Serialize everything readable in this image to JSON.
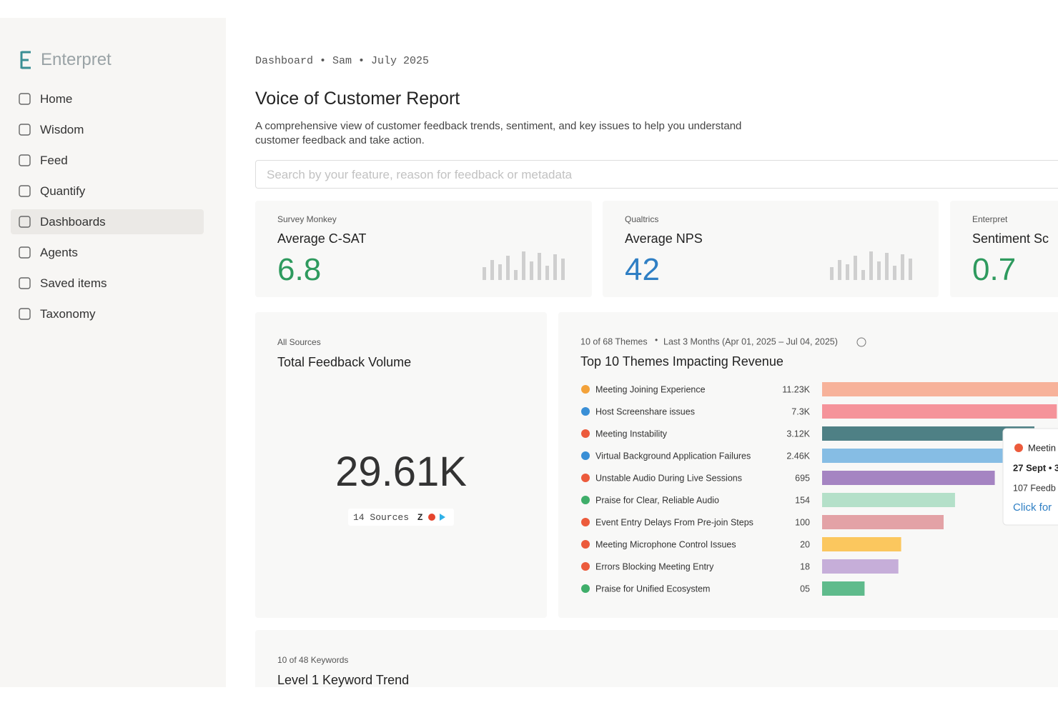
{
  "brand": "Enterpret",
  "nav": [
    "Home",
    "Wisdom",
    "Feed",
    "Quantify",
    "Dashboards",
    "Agents",
    "Saved items",
    "Taxonomy"
  ],
  "breadcrumb": "Dashboard • Sam • July 2025",
  "header": {
    "title": "Voice of Customer Report",
    "description": "A comprehensive view of customer feedback trends, sentiment, and key issues to help you understand customer feedback and take action."
  },
  "search_placeholder": "Search by your feature, reason for feedback or metadata",
  "kpis": [
    {
      "source": "Survey Monkey",
      "title": "Average C-SAT",
      "value": "6.8"
    },
    {
      "source": "Qualtrics",
      "title": "Average NPS",
      "value": "42"
    },
    {
      "source": "Enterpret",
      "title": "Sentiment Sc",
      "value": "0.7"
    }
  ],
  "volume": {
    "source": "All Sources",
    "title": "Total Feedback Volume",
    "value": "29.61K",
    "sources": "14 Sources"
  },
  "chart_data": {
    "type": "bar",
    "orientation": "horizontal",
    "log_scale": true,
    "subtitle": "10 of 68 Themes",
    "period": "Last 3 Months (Apr 01, 2025 – Jul 04, 2025)",
    "title": "Top 10 Themes Impacting Revenue",
    "categories": [
      "Meeting Joining Experience",
      "Host Screenshare issues",
      "Meeting Instability",
      "Virtual Background Application Failures",
      "Unstable Audio During Live Sessions",
      "Praise for Clear, Reliable Audio",
      "Event Entry Delays From Pre-join Steps",
      "Meeting Microphone Control Issues",
      "Errors Blocking Meeting Entry",
      "Praise for Unified Ecosystem"
    ],
    "values": [
      11230,
      7300,
      3120,
      2460,
      695,
      154,
      100,
      20,
      18,
      5
    ],
    "value_labels": [
      "11.23K",
      "7.3K",
      "3.12K",
      "2.46K",
      "695",
      "154",
      "100",
      "20",
      "18",
      "05"
    ],
    "colors": [
      "#f7b29a",
      "#f5939a",
      "#4e8085",
      "#86bde4",
      "#a584c2",
      "#b4e0c9",
      "#e3a2a6",
      "#fbc75e",
      "#c6aed9",
      "#5fbb8c"
    ],
    "icon_colors": [
      "#f3a23a",
      "#3a8fd6",
      "#ec5b3c",
      "#3a8fd6",
      "#ec5b3c",
      "#3fae6a",
      "#ec5b3c",
      "#ec5b3c",
      "#ec5b3c",
      "#3fae6a"
    ]
  },
  "tooltip": {
    "line1": "Meetin",
    "line2": "27 Sept • 3",
    "line3": "107 Feedb",
    "link": "Click for"
  },
  "keywords": {
    "source": "10 of 48 Keywords",
    "title": "Level 1 Keyword Trend"
  }
}
